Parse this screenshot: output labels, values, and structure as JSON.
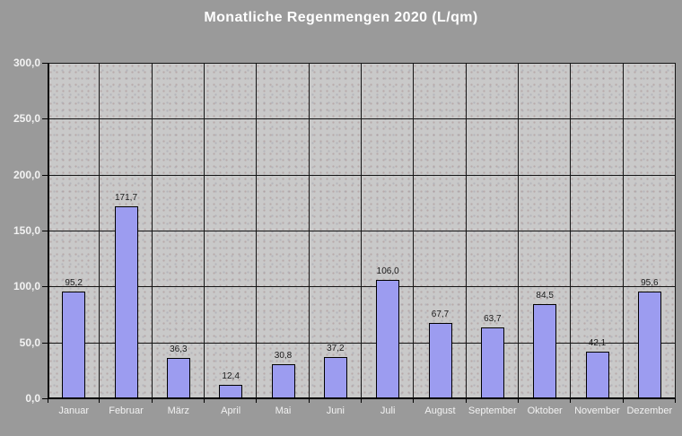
{
  "title": "Monatliche Regenmengen 2020 (L/qm)",
  "colors": {
    "page_bg": "#9a9a9a",
    "plot_bg": "#c9c9c9",
    "bar_fill": "#9c9cf0",
    "bar_border": "#000000",
    "grid": "#151515",
    "axis": "#000000",
    "title_text": "#ffffff",
    "axis_label_text": "#f2f2f2",
    "value_label_text": "#1b1b1b"
  },
  "chart_data": {
    "type": "bar",
    "title": "Monatliche Regenmengen 2020 (L/qm)",
    "xlabel": "",
    "ylabel": "",
    "categories": [
      "Januar",
      "Februar",
      "März",
      "April",
      "Mai",
      "Juni",
      "Juli",
      "August",
      "September",
      "Oktober",
      "November",
      "Dezember"
    ],
    "values": [
      95.2,
      171.7,
      36.3,
      12.4,
      30.8,
      37.2,
      106.0,
      67.7,
      63.7,
      84.5,
      42.1,
      95.6
    ],
    "value_labels": [
      "95,2",
      "171,7",
      "36,3",
      "12,4",
      "30,8",
      "37,2",
      "106,0",
      "67,7",
      "63,7",
      "84,5",
      "42,1",
      "95,6"
    ],
    "ylim": [
      0,
      300
    ],
    "y_ticks": [
      {
        "value": 0,
        "label": "0,0"
      },
      {
        "value": 50,
        "label": "50,0"
      },
      {
        "value": 100,
        "label": "100,0"
      },
      {
        "value": 150,
        "label": "150,0"
      },
      {
        "value": 200,
        "label": "200,0"
      },
      {
        "value": 250,
        "label": "250,0"
      },
      {
        "value": 300,
        "label": "300,0"
      }
    ],
    "grid": true,
    "legend": "none"
  }
}
